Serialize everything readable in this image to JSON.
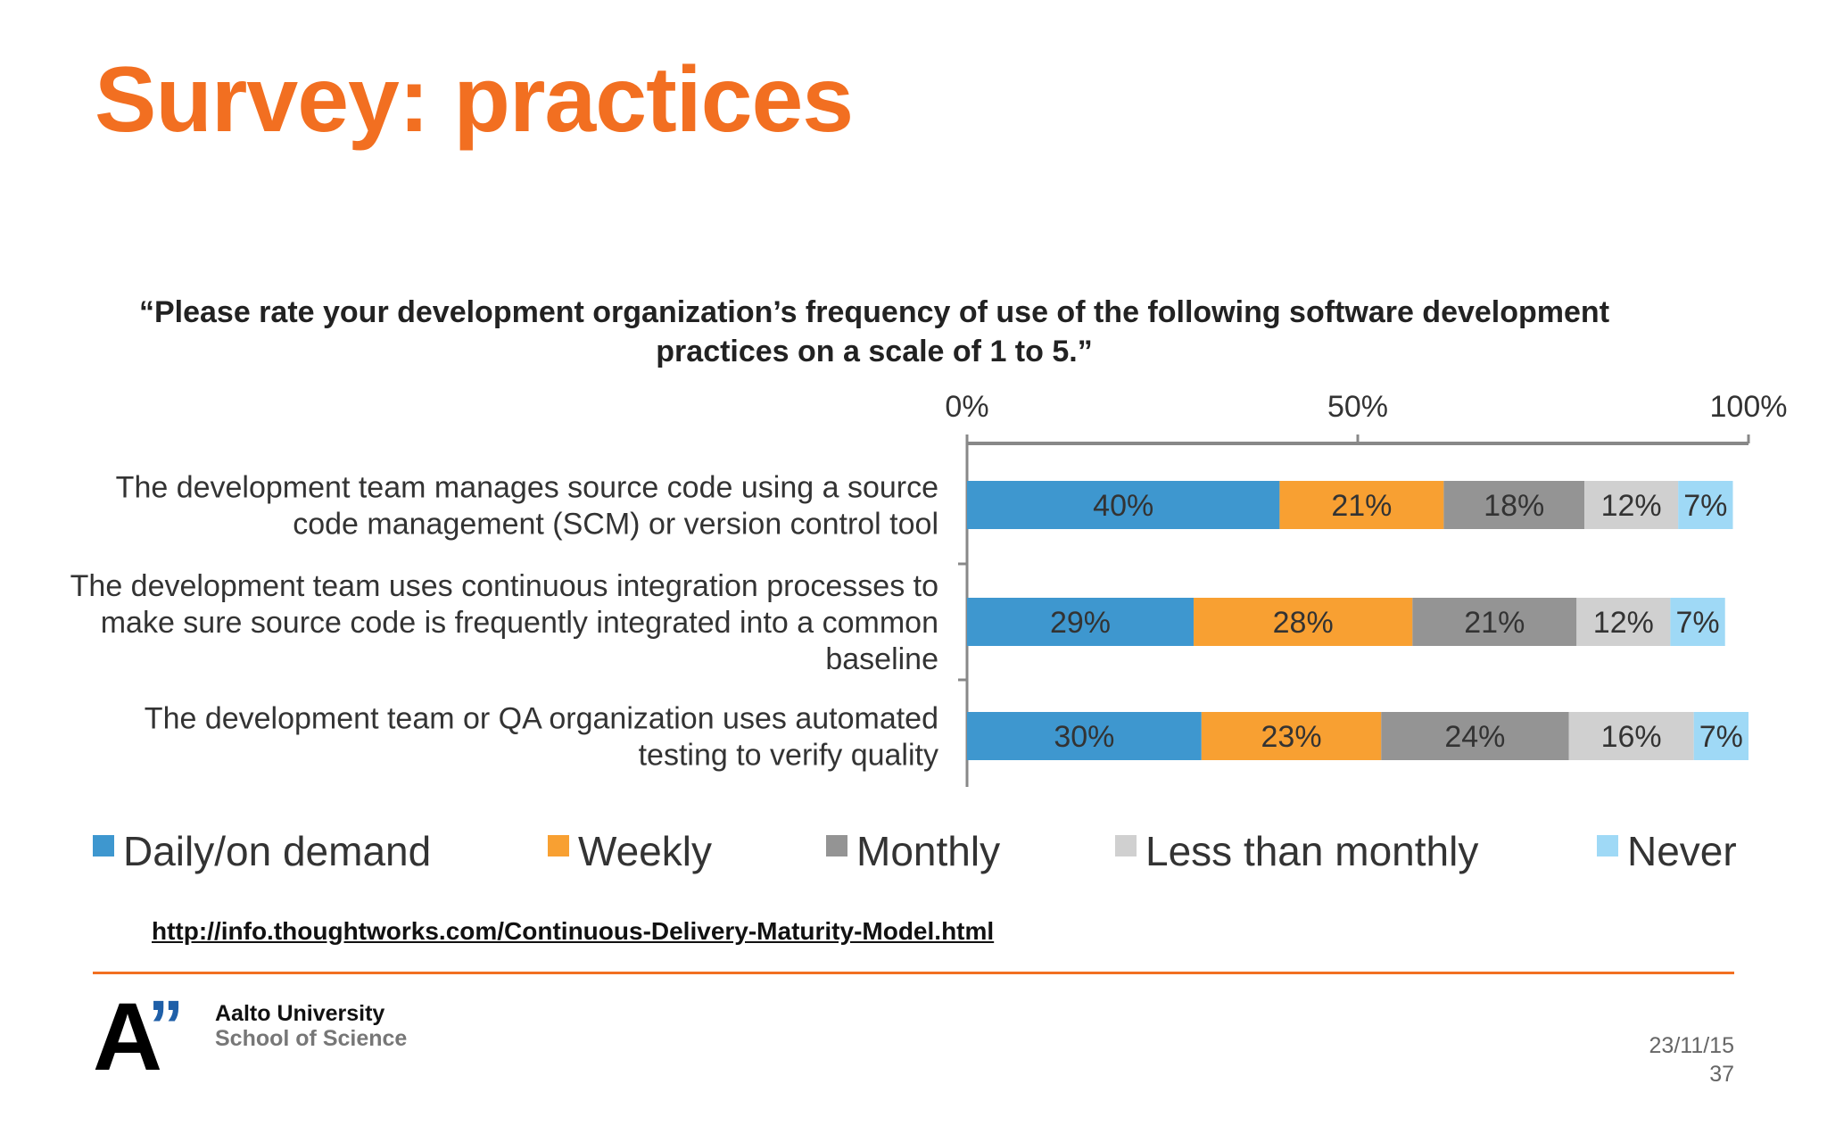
{
  "slide": {
    "title": "Survey: practices",
    "source_url": "http://info.thoughtworks.com/Continuous-Delivery-Maturity-Model.html",
    "organization": "Aalto University",
    "school": "School of Science",
    "logo_mark": "A",
    "logo_quote": "”",
    "date": "23/11/15",
    "page_number": "37"
  },
  "chart_data": {
    "type": "bar",
    "orientation": "horizontal",
    "stacked": true,
    "title_lines": [
      "“Please rate your development organization’s frequency of use of the following software development",
      "practices on a scale of 1 to 5.”"
    ],
    "xlim": [
      0,
      100
    ],
    "x_ticks": [
      {
        "value": 0,
        "label": "0%"
      },
      {
        "value": 50,
        "label": "50%"
      },
      {
        "value": 100,
        "label": "100%"
      }
    ],
    "categories": [
      [
        "The development team manages source code using a source",
        "code management (SCM) or version control tool"
      ],
      [
        "The development team uses continuous integration processes to",
        "make sure source code is frequently integrated into a common",
        "baseline"
      ],
      [
        "The development team or QA organization uses automated",
        "testing to verify quality"
      ]
    ],
    "series": [
      {
        "name": "Daily/on demand",
        "color": "#3e97cf",
        "values": [
          40,
          29,
          30
        ],
        "labels": [
          "40%",
          "29%",
          "30%"
        ]
      },
      {
        "name": "Weekly",
        "color": "#f8a032",
        "values": [
          21,
          28,
          23
        ],
        "labels": [
          "21%",
          "28%",
          "23%"
        ]
      },
      {
        "name": "Monthly",
        "color": "#949494",
        "values": [
          18,
          21,
          24
        ],
        "labels": [
          "18%",
          "21%",
          "24%"
        ]
      },
      {
        "name": "Less than monthly",
        "color": "#d0d0d0",
        "values": [
          12,
          12,
          16
        ],
        "labels": [
          "12%",
          "12%",
          "16%"
        ]
      },
      {
        "name": "Never",
        "color": "#9fd9f6",
        "values": [
          7,
          7,
          7
        ],
        "labels": [
          "7%",
          "7%",
          "7%"
        ]
      }
    ],
    "legend_position": "bottom",
    "grid": false
  }
}
